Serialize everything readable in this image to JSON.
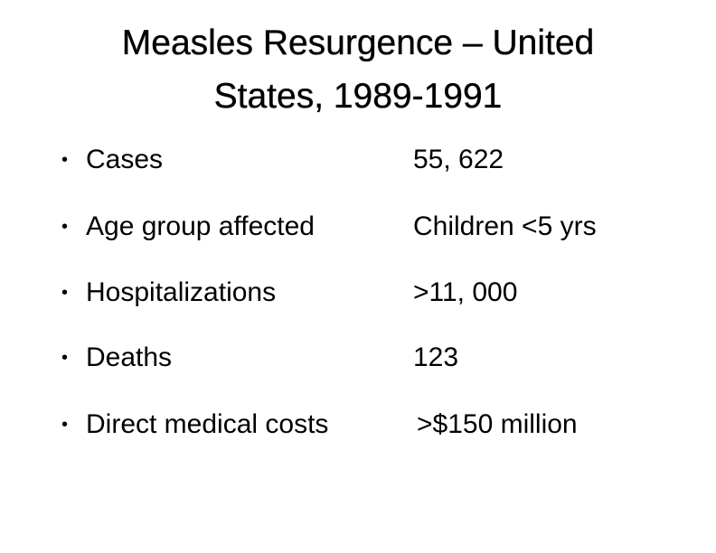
{
  "title": {
    "line1": "Measles Resurgence – United",
    "line2": "States, 1989-1991"
  },
  "items": [
    {
      "label": "Cases",
      "value": "55, 622"
    },
    {
      "label": "Age group affected",
      "value": "Children <5 yrs"
    },
    {
      "label": "Hospitalizations",
      "value": ">11, 000"
    },
    {
      "label": "Deaths",
      "value": "123"
    },
    {
      "label": "Direct medical costs",
      "value": ">$150 million"
    }
  ]
}
